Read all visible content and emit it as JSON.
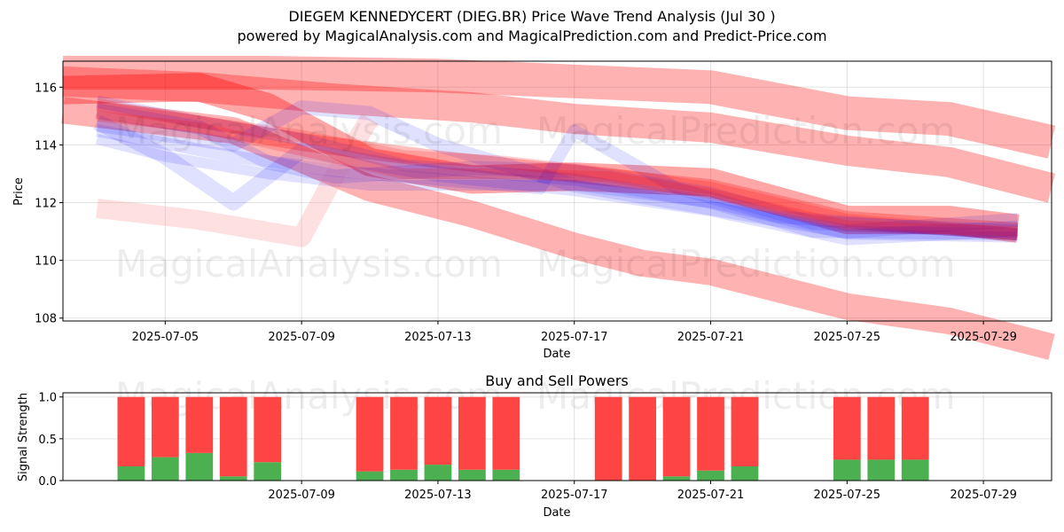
{
  "title_line1": "DIEGEM KENNEDYCERT (DIEG.BR) Price Wave Trend Analysis (Jul 30 )",
  "title_line2": "powered by MagicalAnalysis.com and MagicalPrediction.com and Predict-Price.com",
  "watermarks": [
    "MagicalAnalysis.com",
    "MagicalPrediction.com"
  ],
  "chart_data": [
    {
      "type": "line",
      "title": "",
      "xlabel": "Date",
      "ylabel": "Price",
      "xlim": [
        "2025-07-02",
        "2025-07-31"
      ],
      "ylim": [
        107.9,
        116.9
      ],
      "xticks": [
        "2025-07-05",
        "2025-07-09",
        "2025-07-13",
        "2025-07-17",
        "2025-07-21",
        "2025-07-25",
        "2025-07-29"
      ],
      "yticks": [
        108,
        110,
        112,
        114,
        116
      ],
      "grid": true,
      "colors": {
        "red": "#ff0000",
        "blue": "#0000ff",
        "pink": "#ff9999"
      },
      "series": [
        {
          "color": "red",
          "width": 38,
          "opacity": 0.3,
          "x": [
            "2025-07-02",
            "2025-07-08",
            "2025-07-13",
            "2025-07-17",
            "2025-07-21",
            "2025-07-25",
            "2025-07-28",
            "2025-07-31"
          ],
          "y": [
            116.5,
            116.5,
            116.4,
            116.2,
            116.0,
            115.1,
            114.9,
            114.1
          ]
        },
        {
          "color": "red",
          "width": 34,
          "opacity": 0.3,
          "x": [
            "2025-07-02",
            "2025-07-06",
            "2025-07-10",
            "2025-07-14",
            "2025-07-17",
            "2025-07-21",
            "2025-07-25",
            "2025-07-28",
            "2025-07-31"
          ],
          "y": [
            116.2,
            116.0,
            115.6,
            115.3,
            114.9,
            114.6,
            113.8,
            113.4,
            112.5
          ]
        },
        {
          "color": "red",
          "width": 30,
          "opacity": 0.3,
          "x": [
            "2025-07-02",
            "2025-07-07",
            "2025-07-11",
            "2025-07-14",
            "2025-07-17",
            "2025-07-19",
            "2025-07-21",
            "2025-07-25",
            "2025-07-28",
            "2025-07-31"
          ],
          "y": [
            115.2,
            114.5,
            112.5,
            111.6,
            110.5,
            109.9,
            109.6,
            108.4,
            107.9,
            107.0
          ]
        },
        {
          "color": "red",
          "width": 32,
          "opacity": 0.35,
          "x": [
            "2025-07-02",
            "2025-07-06",
            "2025-07-08",
            "2025-07-11",
            "2025-07-14",
            "2025-07-17",
            "2025-07-21",
            "2025-07-25",
            "2025-07-28",
            "2025-07-30"
          ],
          "y": [
            115.9,
            116.0,
            115.3,
            113.4,
            112.8,
            112.9,
            112.7,
            111.4,
            111.4,
            111.1
          ]
        },
        {
          "color": "pink",
          "width": 22,
          "opacity": 0.3,
          "x": [
            "2025-07-03",
            "2025-07-06",
            "2025-07-09",
            "2025-07-10",
            "2025-07-11"
          ],
          "y": [
            111.8,
            111.4,
            110.8,
            113.0,
            114.9
          ]
        },
        {
          "color": "red",
          "width": 20,
          "opacity": 0.25,
          "x": [
            "2025-07-03",
            "2025-07-06",
            "2025-07-09",
            "2025-07-13",
            "2025-07-17",
            "2025-07-21",
            "2025-07-25",
            "2025-07-30"
          ],
          "y": [
            115.2,
            114.7,
            114.1,
            113.5,
            113.0,
            112.5,
            111.4,
            111.0
          ]
        },
        {
          "color": "blue",
          "width": 18,
          "opacity": 0.12,
          "x": [
            "2025-07-03",
            "2025-07-05",
            "2025-07-07",
            "2025-07-09",
            "2025-07-13",
            "2025-07-17",
            "2025-07-21",
            "2025-07-25",
            "2025-07-30"
          ],
          "y": [
            114.8,
            113.6,
            112.0,
            113.8,
            113.0,
            112.5,
            111.8,
            110.8,
            111.1
          ]
        },
        {
          "color": "blue",
          "width": 16,
          "opacity": 0.12,
          "x": [
            "2025-07-03",
            "2025-07-07",
            "2025-07-09",
            "2025-07-11",
            "2025-07-13",
            "2025-07-17",
            "2025-07-21",
            "2025-07-25",
            "2025-07-30"
          ],
          "y": [
            114.7,
            114.0,
            115.3,
            115.1,
            114.0,
            112.6,
            111.8,
            111.0,
            111.4
          ]
        },
        {
          "color": "blue",
          "width": 16,
          "opacity": 0.12,
          "x": [
            "2025-07-03",
            "2025-07-06",
            "2025-07-08",
            "2025-07-10",
            "2025-07-14",
            "2025-07-17",
            "2025-07-21",
            "2025-07-24",
            "2025-07-30"
          ],
          "y": [
            115.2,
            114.6,
            113.4,
            112.9,
            113.2,
            113.1,
            112.3,
            111.3,
            111.0
          ]
        },
        {
          "color": "blue",
          "width": 14,
          "opacity": 0.12,
          "x": [
            "2025-07-03",
            "2025-07-07",
            "2025-07-10",
            "2025-07-13",
            "2025-07-16",
            "2025-07-17",
            "2025-07-20",
            "2025-07-23",
            "2025-07-30"
          ],
          "y": [
            114.5,
            113.6,
            113.1,
            112.8,
            112.5,
            114.5,
            112.5,
            111.5,
            110.9
          ]
        },
        {
          "color": "blue",
          "width": 14,
          "opacity": 0.12,
          "x": [
            "2025-07-03",
            "2025-07-06",
            "2025-07-09",
            "2025-07-12",
            "2025-07-15",
            "2025-07-17",
            "2025-07-21",
            "2025-07-24",
            "2025-07-30"
          ],
          "y": [
            115.5,
            114.8,
            114.2,
            113.3,
            113.0,
            112.8,
            112.0,
            111.0,
            110.9
          ]
        },
        {
          "color": "blue",
          "width": 12,
          "opacity": 0.12,
          "x": [
            "2025-07-03",
            "2025-07-05",
            "2025-07-08",
            "2025-07-11",
            "2025-07-14",
            "2025-07-17",
            "2025-07-21",
            "2025-07-25",
            "2025-07-30"
          ],
          "y": [
            114.2,
            113.6,
            113.0,
            112.6,
            112.6,
            112.6,
            112.0,
            110.9,
            110.8
          ]
        },
        {
          "color": "red",
          "width": 14,
          "opacity": 0.18,
          "x": [
            "2025-07-03",
            "2025-07-06",
            "2025-07-09",
            "2025-07-12",
            "2025-07-15",
            "2025-07-18",
            "2025-07-21",
            "2025-07-25",
            "2025-07-30"
          ],
          "y": [
            115.4,
            114.8,
            114.3,
            113.6,
            113.4,
            113.0,
            112.5,
            111.4,
            110.9
          ]
        },
        {
          "color": "red",
          "width": 12,
          "opacity": 0.18,
          "x": [
            "2025-07-03",
            "2025-07-06",
            "2025-07-09",
            "2025-07-12",
            "2025-07-15",
            "2025-07-18",
            "2025-07-21",
            "2025-07-25",
            "2025-07-30"
          ],
          "y": [
            115.0,
            114.6,
            113.8,
            113.0,
            113.0,
            112.9,
            112.3,
            111.2,
            111.0
          ]
        }
      ]
    },
    {
      "type": "bar",
      "title": "Buy and Sell Powers",
      "xlabel": "Date",
      "ylabel": "Signal Strength",
      "xlim": [
        "2025-07-02",
        "2025-07-31"
      ],
      "ylim": [
        0,
        1.05
      ],
      "xticks": [
        "2025-07-09",
        "2025-07-13",
        "2025-07-17",
        "2025-07-21",
        "2025-07-25",
        "2025-07-29"
      ],
      "yticks": [
        0.0,
        0.5,
        1.0
      ],
      "grid": true,
      "colors": {
        "buy": "#4caf50",
        "sell": "#ff4444"
      },
      "series": [
        {
          "name": "Buy"
        },
        {
          "name": "Sell"
        }
      ],
      "categories": [
        "2025-07-04",
        "2025-07-05",
        "2025-07-06",
        "2025-07-07",
        "2025-07-08",
        "2025-07-11",
        "2025-07-12",
        "2025-07-13",
        "2025-07-14",
        "2025-07-15",
        "2025-07-18",
        "2025-07-19",
        "2025-07-20",
        "2025-07-21",
        "2025-07-22",
        "2025-07-25",
        "2025-07-26",
        "2025-07-27"
      ],
      "buy": [
        0.17,
        0.28,
        0.33,
        0.05,
        0.22,
        0.11,
        0.13,
        0.19,
        0.13,
        0.13,
        0.0,
        0.0,
        0.05,
        0.12,
        0.17,
        0.25,
        0.25,
        0.25
      ],
      "sell": [
        0.83,
        0.72,
        0.67,
        0.95,
        0.78,
        0.89,
        0.87,
        0.81,
        0.87,
        0.87,
        1.0,
        1.0,
        0.95,
        0.88,
        0.83,
        0.75,
        0.75,
        0.75
      ]
    }
  ]
}
